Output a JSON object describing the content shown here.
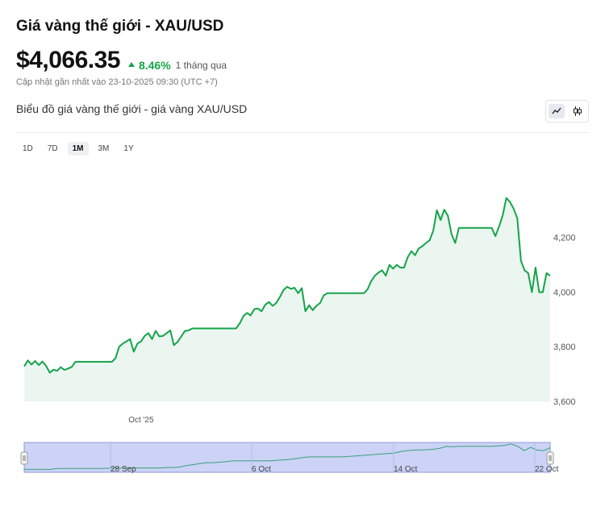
{
  "header": {
    "title": "Giá vàng thế giới - XAU/USD",
    "price": "$4,066.35",
    "change_pct": "8.46%",
    "change_period": "1 tháng qua",
    "updated": "Cập nhật gần nhất vào 23-10-2025 09:30 (UTC +7)"
  },
  "chart_header": {
    "title": "Biểu đồ giá vàng thế giới - giá vàng XAU/USD"
  },
  "view_toggle": {
    "options": [
      "line-chart-icon",
      "candlestick-icon"
    ],
    "active": "line-chart-icon"
  },
  "ranges": [
    "1D",
    "7D",
    "1M",
    "3M",
    "1Y"
  ],
  "active_range": "1M",
  "colors": {
    "line": "#16a34a",
    "area": "#eaf6ef",
    "navigator_bg": "#ccd3f7",
    "navigator_border": "#8e99d9"
  },
  "chart_data": {
    "type": "area",
    "y_ticks": [
      "3,600",
      "3,800",
      "4,000",
      "4,200"
    ],
    "ylim": [
      3600,
      4450
    ],
    "x_ticks": [
      {
        "label": "Oct '25",
        "index": 32
      }
    ],
    "values": [
      3728,
      3750,
      3735,
      3748,
      3733,
      3746,
      3730,
      3705,
      3716,
      3712,
      3725,
      3715,
      3720,
      3726,
      3745,
      3745,
      3745,
      3745,
      3745,
      3745,
      3745,
      3745,
      3745,
      3745,
      3745,
      3758,
      3800,
      3812,
      3820,
      3828,
      3782,
      3812,
      3820,
      3840,
      3850,
      3828,
      3858,
      3838,
      3840,
      3850,
      3860,
      3806,
      3818,
      3838,
      3858,
      3860,
      3867,
      3867,
      3867,
      3867,
      3867,
      3867,
      3867,
      3867,
      3867,
      3867,
      3867,
      3867,
      3867,
      3885,
      3912,
      3924,
      3915,
      3938,
      3940,
      3930,
      3954,
      3964,
      3950,
      3960,
      3982,
      4008,
      4020,
      4012,
      4016,
      3996,
      4015,
      3930,
      3952,
      3934,
      3950,
      3960,
      3988,
      3996,
      3996,
      3996,
      3996,
      3996,
      3996,
      3996,
      3996,
      3996,
      3996,
      3996,
      4010,
      4040,
      4060,
      4072,
      4080,
      4060,
      4100,
      4086,
      4100,
      4090,
      4090,
      4128,
      4150,
      4135,
      4160,
      4168,
      4180,
      4190,
      4225,
      4300,
      4264,
      4302,
      4280,
      4212,
      4180,
      4235,
      4235,
      4235,
      4235,
      4235,
      4235,
      4235,
      4235,
      4235,
      4235,
      4205,
      4240,
      4280,
      4345,
      4330,
      4306,
      4270,
      4115,
      4080,
      4070,
      4000,
      4090,
      4000,
      4000,
      4070,
      4060
    ],
    "navigator_labels": [
      "28 Sep",
      "6 Oct",
      "14 Oct",
      "22 Oct"
    ],
    "navigator_values": [
      3620,
      3620,
      3620,
      3620,
      3620,
      3640,
      3640,
      3640,
      3640,
      3640,
      3640,
      3640,
      3640,
      3645,
      3650,
      3650,
      3650,
      3650,
      3650,
      3650,
      3650,
      3650,
      3660,
      3660,
      3670,
      3700,
      3720,
      3740,
      3760,
      3760,
      3770,
      3780,
      3800,
      3800,
      3800,
      3800,
      3800,
      3800,
      3800,
      3810,
      3820,
      3830,
      3850,
      3870,
      3880,
      3880,
      3880,
      3880,
      3880,
      3880,
      3890,
      3900,
      3910,
      3920,
      3930,
      3940,
      3950,
      3960,
      3990,
      4010,
      4020,
      4025,
      4030,
      4040,
      4060,
      4100,
      4090,
      4100,
      4100,
      4100,
      4100,
      4100,
      4100,
      4110,
      4120,
      4150,
      4100,
      4010,
      4080,
      4020,
      4010,
      4070
    ]
  }
}
